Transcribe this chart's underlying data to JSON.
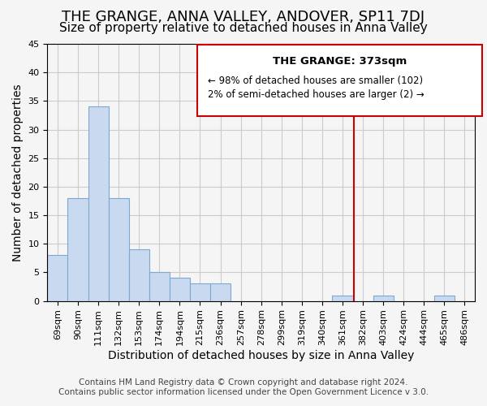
{
  "title": "THE GRANGE, ANNA VALLEY, ANDOVER, SP11 7DJ",
  "subtitle": "Size of property relative to detached houses in Anna Valley",
  "xlabel": "Distribution of detached houses by size in Anna Valley",
  "ylabel": "Number of detached properties",
  "bar_labels": [
    "69sqm",
    "90sqm",
    "111sqm",
    "132sqm",
    "153sqm",
    "174sqm",
    "194sqm",
    "215sqm",
    "236sqm",
    "257sqm",
    "278sqm",
    "299sqm",
    "319sqm",
    "340sqm",
    "361sqm",
    "382sqm",
    "403sqm",
    "424sqm",
    "444sqm",
    "465sqm",
    "486sqm"
  ],
  "bar_values": [
    8,
    18,
    34,
    18,
    9,
    5,
    4,
    3,
    3,
    0,
    0,
    0,
    0,
    0,
    1,
    0,
    1,
    0,
    0,
    1,
    0
  ],
  "bar_color": "#c9d9f0",
  "bar_edge_color": "#7aaad0",
  "ylim": [
    0,
    45
  ],
  "yticks": [
    0,
    5,
    10,
    15,
    20,
    25,
    30,
    35,
    40,
    45
  ],
  "property_line_label": "THE GRANGE: 373sqm",
  "property_line_color": "#cc0000",
  "annotation_line1": "← 98% of detached houses are smaller (102)",
  "annotation_line2": "2% of semi-detached houses are larger (2) →",
  "footer_line1": "Contains HM Land Registry data © Crown copyright and database right 2024.",
  "footer_line2": "Contains public sector information licensed under the Open Government Licence v 3.0.",
  "background_color": "#f5f5f5",
  "grid_color": "#cccccc",
  "title_fontsize": 13,
  "subtitle_fontsize": 11,
  "axis_label_fontsize": 10,
  "tick_fontsize": 8,
  "footer_fontsize": 7.5
}
